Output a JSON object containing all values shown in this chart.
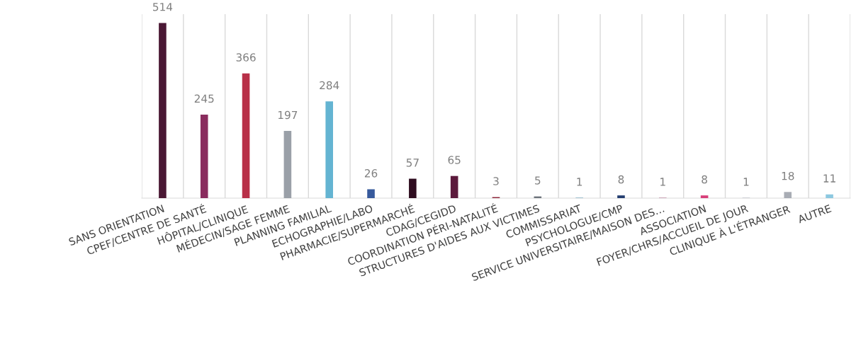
{
  "chart_data": {
    "type": "bar",
    "categories": [
      "SANS ORIENTATION",
      "CPEF/CENTRE DE SANTÉ",
      "HÔPITAL/CLINIQUE",
      "MÉDECIN/SAGE FEMME",
      "PLANNING FAMILIAL",
      "ECHOGRAPHIE/LABO",
      "PHARMACIE/SUPERMARCHÉ",
      "CDAG/CEGIDD",
      "COORDINATION PÉRI-NATALITÉ",
      "STRUCTURES D'AIDES AUX VICTIMES",
      "COMMISSARIAT",
      "PSYCHOLOGUE/CMP",
      "SERVICE UNIVERSITAIRE/MAISON DES…",
      "ASSOCIATION",
      "FOYER/CHRS/ACCUEIL DE JOUR",
      "CLINIQUE À L'ÉTRANGER",
      "AUTRE"
    ],
    "values": [
      514,
      245,
      366,
      197,
      284,
      26,
      57,
      65,
      3,
      5,
      1,
      8,
      1,
      8,
      1,
      18,
      11
    ],
    "colors": [
      "#4a1834",
      "#8a2c5e",
      "#b83048",
      "#9aa0a8",
      "#64b4d2",
      "#375a9c",
      "#2f0d20",
      "#5c1a3c",
      "#8c2438",
      "#6e747c",
      "#4a90b0",
      "#243e70",
      "#a85a80",
      "#d8407a",
      "#b0b4bc",
      "#a8acb4",
      "#8cc8e0"
    ],
    "data_labels": true,
    "grid": "x"
  }
}
